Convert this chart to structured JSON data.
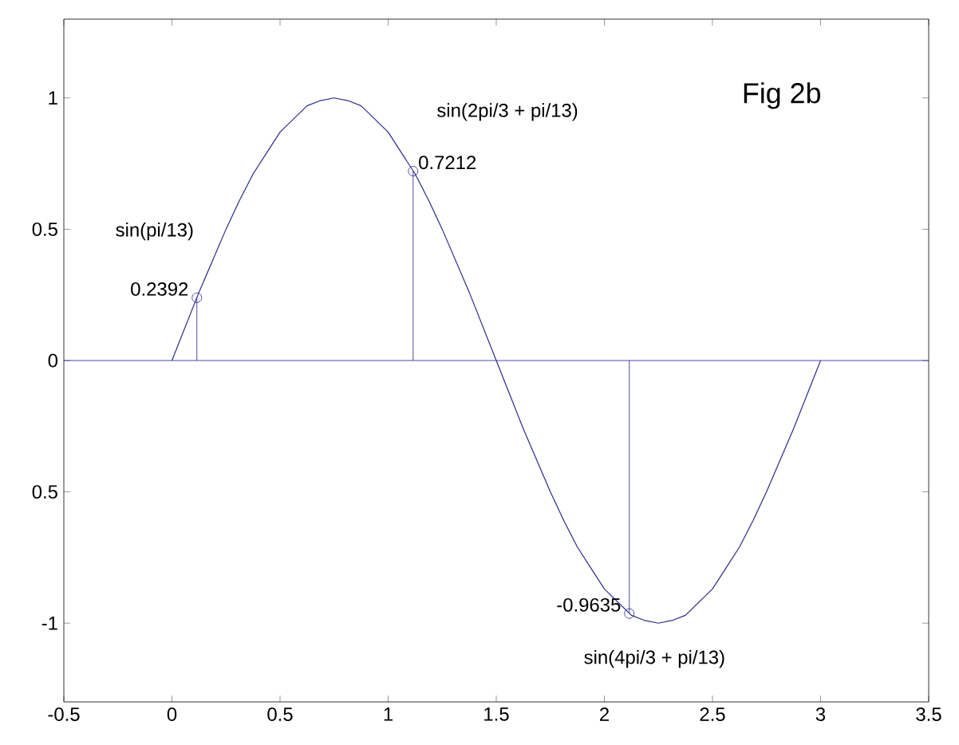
{
  "chart_data": {
    "type": "line",
    "series": [
      {
        "color": "#2b2b8c",
        "x": [
          0,
          0.0625,
          0.125,
          0.1875,
          0.25,
          0.3125,
          0.375,
          0.4375,
          0.5,
          0.5625,
          0.625,
          0.6875,
          0.75,
          0.8125,
          0.875,
          0.9375,
          1,
          1.0625,
          1.125,
          1.1875,
          1.25,
          1.3125,
          1.375,
          1.4375,
          1.5,
          1.5625,
          1.625,
          1.6875,
          1.75,
          1.8125,
          1.875,
          1.9375,
          2,
          2.0625,
          2.125,
          2.1875,
          2.25,
          2.3125,
          2.375,
          2.4375,
          2.5,
          2.5625,
          2.625,
          2.6875,
          2.75,
          2.8125,
          2.875,
          2.9375,
          3
        ],
        "values": [
          0,
          0.13,
          0.26,
          0.38,
          0.5,
          0.61,
          0.71,
          0.79,
          0.87,
          0.92,
          0.97,
          0.99,
          1,
          0.99,
          0.97,
          0.92,
          0.87,
          0.79,
          0.71,
          0.61,
          0.5,
          0.38,
          0.26,
          0.13,
          0,
          -0.13,
          -0.26,
          -0.38,
          -0.5,
          -0.61,
          -0.71,
          -0.79,
          -0.87,
          -0.92,
          -0.97,
          -0.99,
          -1,
          -0.99,
          -0.97,
          -0.92,
          -0.87,
          -0.79,
          -0.71,
          -0.61,
          -0.5,
          -0.38,
          -0.26,
          -0.13,
          0
        ]
      },
      {
        "type": "lollipop",
        "color": "#1f1f8f",
        "marker": "circle",
        "x": [
          0.1154,
          1.1154,
          2.1154
        ],
        "values": [
          0.2392,
          0.7212,
          -0.9635
        ],
        "value_labels": [
          "0.2392",
          "0.7212",
          "-0.9635"
        ]
      }
    ],
    "xlim": [
      -0.5,
      3.5
    ],
    "xticks": [
      -0.5,
      0,
      0.5,
      1,
      1.5,
      2,
      2.5,
      3,
      3.5
    ],
    "ylim": [
      -1.3,
      1.3
    ],
    "yticks": [
      {
        "value": -1,
        "label": "-1"
      },
      {
        "value": -0.5,
        "label": "0.5"
      },
      0,
      0.5,
      1
    ],
    "ref_lines": [
      {
        "axis": "y",
        "value": 0,
        "color": "#1f1f8f"
      }
    ],
    "annotations": [
      "sin(pi/13)",
      "sin(2pi/3 + pi/13)",
      "sin(4pi/3 + pi/13)",
      "Fig 2b"
    ],
    "marker": "none"
  }
}
